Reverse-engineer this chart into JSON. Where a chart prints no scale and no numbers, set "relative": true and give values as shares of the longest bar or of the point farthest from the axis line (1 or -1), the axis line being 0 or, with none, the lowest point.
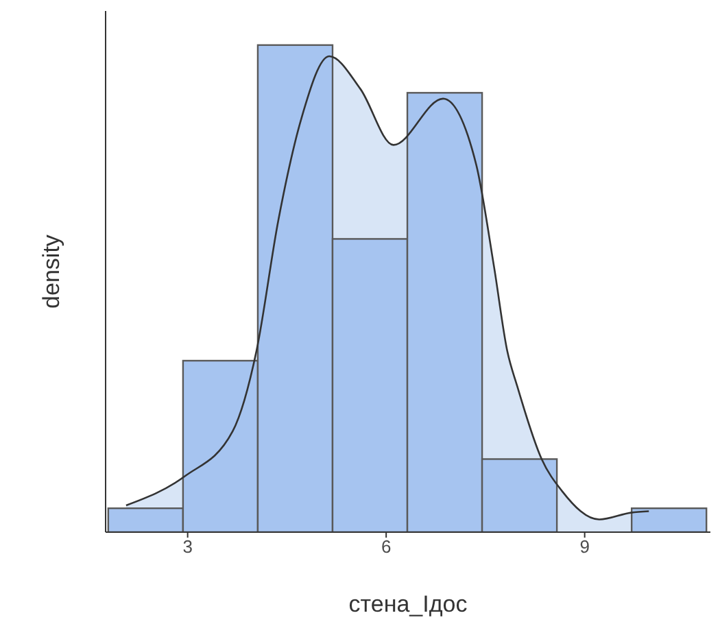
{
  "chart_data": {
    "type": "histogram",
    "xlabel": "стена_Ідос",
    "ylabel": "density",
    "relative": true,
    "tick_labels": "x",
    "grid": false,
    "legend": false,
    "xlim": [
      1.76,
      10.9
    ],
    "xticks": [
      3,
      6,
      9
    ],
    "bins": [
      1.8,
      2.93,
      4.06,
      5.19,
      6.32,
      7.45,
      8.58,
      9.71,
      10.84
    ],
    "series": [
      {
        "color": "#a6c4f0",
        "values": [
          0.049,
          0.352,
          1,
          0.602,
          0.902,
          0.15,
          0,
          0.049
        ]
      },
      {
        "type": "area",
        "color": "#d8e5f6",
        "x": [
          2.07,
          2.96,
          3.68,
          4.04,
          4.37,
          4.72,
          5.14,
          5.61,
          6.11,
          6.86,
          7.36,
          7.63,
          7.83,
          7.98,
          8.35,
          8.66,
          9.22,
          9.7,
          9.97
        ],
        "values": [
          0.055,
          0.115,
          0.207,
          0.372,
          0.64,
          0.85,
          0.977,
          0.91,
          0.795,
          0.89,
          0.755,
          0.545,
          0.372,
          0.3,
          0.15,
          0.084,
          0.026,
          0.04,
          0.043
        ]
      }
    ]
  }
}
